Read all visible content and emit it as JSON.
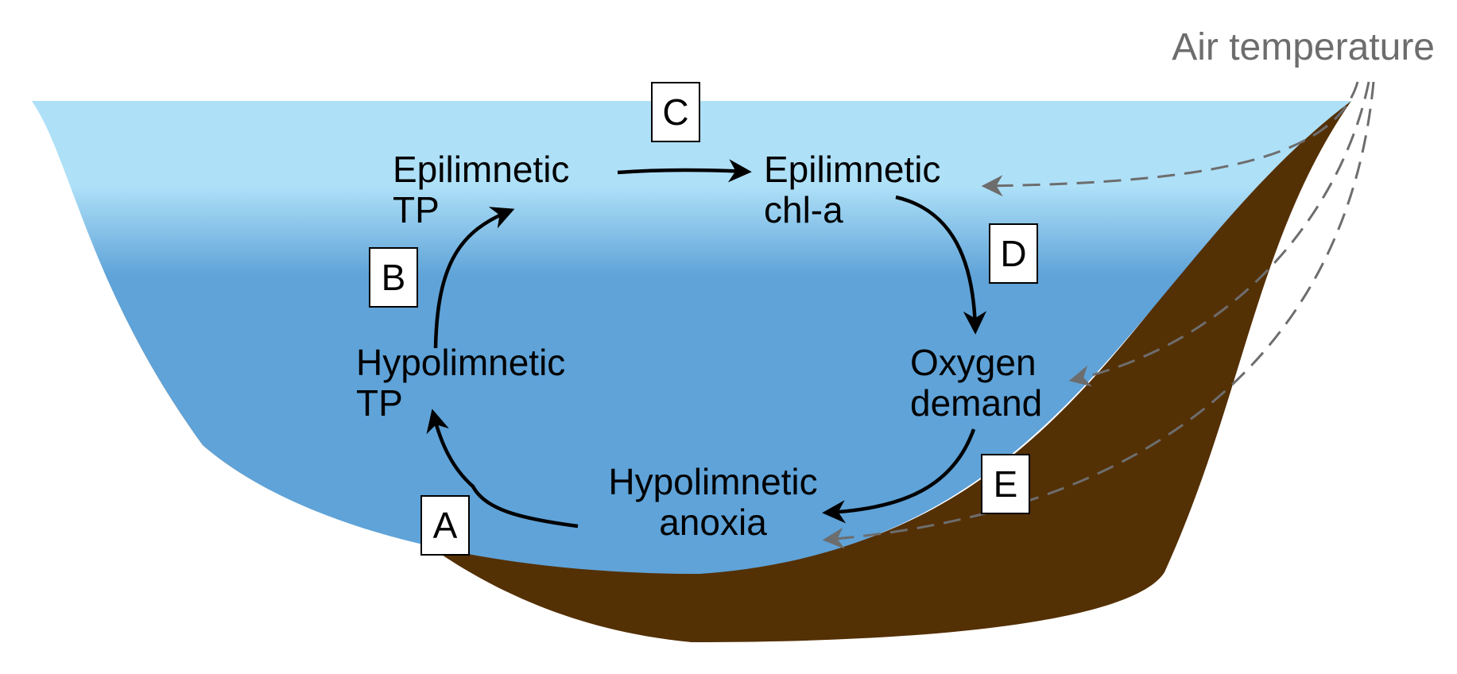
{
  "colors": {
    "water_surface": "#aee0f8",
    "water_deep": "#5fa3d8",
    "sediment": "#543005",
    "cycle_arrow": "#000000",
    "temperature_arrow": "#6d6d6d"
  },
  "air_temperature": {
    "label": "Air temperature"
  },
  "nodes": {
    "epilimnetic_tp": {
      "line1": "Epilimnetic",
      "line2": "TP"
    },
    "epilimnetic_chla": {
      "line1": "Epilimnetic",
      "line2": "chl-a"
    },
    "oxygen_demand": {
      "line1": "Oxygen",
      "line2": "demand"
    },
    "hypolimnetic_anoxia": {
      "line1": "Hypolimnetic",
      "line2": "anoxia"
    },
    "hypolimnetic_tp": {
      "line1": "Hypolimnetic",
      "line2": "TP"
    }
  },
  "boxes": {
    "a": "A",
    "b": "B",
    "c": "C",
    "d": "D",
    "e": "E"
  },
  "links": [
    {
      "box": "A",
      "from": "Hypolimnetic anoxia",
      "to": "Hypolimnetic TP"
    },
    {
      "box": "B",
      "from": "Hypolimnetic TP",
      "to": "Epilimnetic TP"
    },
    {
      "box": "C",
      "from": "Epilimnetic TP",
      "to": "Epilimnetic chl-a"
    },
    {
      "box": "D",
      "from": "Epilimnetic chl-a",
      "to": "Oxygen demand"
    },
    {
      "box": "E",
      "from": "Oxygen demand",
      "to": "Hypolimnetic anoxia"
    },
    {
      "from": "Air temperature",
      "to": "Epilimnetic chl-a",
      "style": "dashed"
    },
    {
      "from": "Air temperature",
      "to": "Oxygen demand",
      "style": "dashed"
    },
    {
      "from": "Air temperature",
      "to": "Hypolimnetic anoxia",
      "style": "dashed"
    }
  ]
}
